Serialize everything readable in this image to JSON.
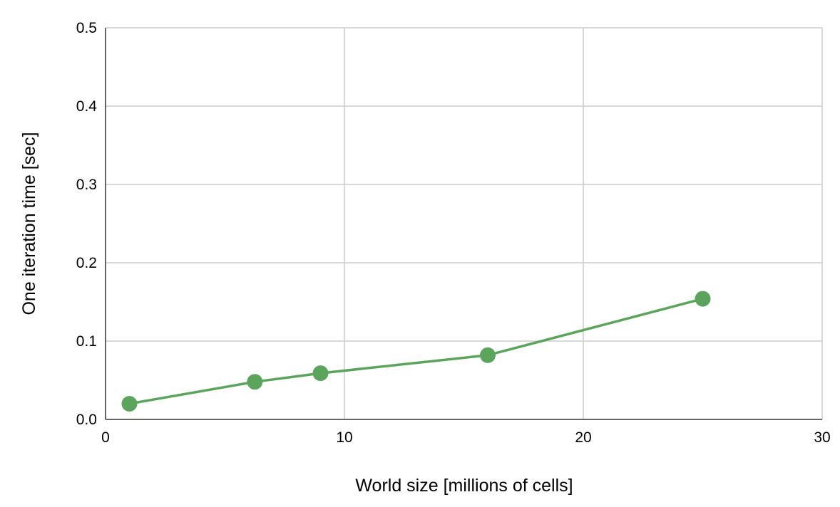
{
  "chart_data": {
    "type": "line",
    "title": "",
    "xlabel": "World size [millions of cells]",
    "ylabel": "One iteration time [sec]",
    "xlim": [
      0,
      30
    ],
    "ylim": [
      0,
      0.5
    ],
    "x_ticks": [
      "0",
      "10",
      "20",
      "30"
    ],
    "y_ticks": [
      "0.0",
      "0.1",
      "0.2",
      "0.3",
      "0.4",
      "0.5"
    ],
    "grid": true,
    "legend": "none",
    "series": [
      {
        "color": "#5aa55b",
        "x": [
          1,
          6.25,
          9,
          16,
          25
        ],
        "y": [
          0.02,
          0.048,
          0.059,
          0.082,
          0.154
        ]
      }
    ]
  }
}
